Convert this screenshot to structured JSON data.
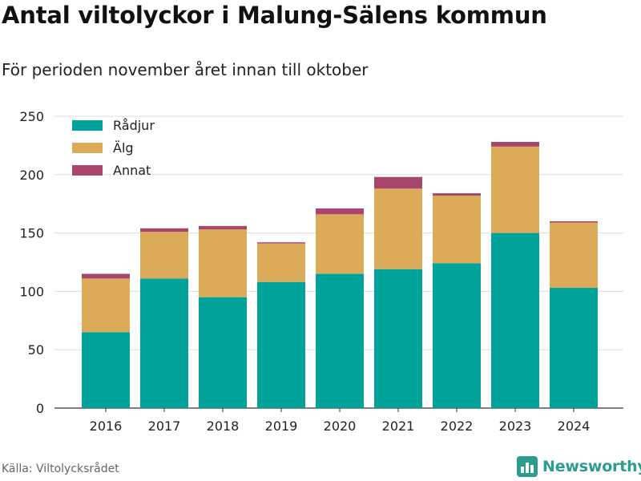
{
  "title": "Antal viltolyckor i Malung-Sälens kommun",
  "subtitle": "För perioden november året innan till oktober",
  "source": "Källa: Viltolycksrådet",
  "brand": {
    "name": "Newsworthy",
    "icon": "bar-chart-logo-icon",
    "color": "#2a9d8f"
  },
  "chart_data": {
    "type": "bar",
    "stacked": true,
    "categories": [
      "2016",
      "2017",
      "2018",
      "2019",
      "2020",
      "2021",
      "2022",
      "2023",
      "2024"
    ],
    "series": [
      {
        "name": "Rådjur",
        "color": "#00a39a",
        "values": [
          65,
          111,
          95,
          108,
          115,
          119,
          124,
          150,
          103
        ]
      },
      {
        "name": "Älg",
        "color": "#dbab5a",
        "values": [
          46,
          40,
          58,
          33,
          51,
          69,
          58,
          74,
          56
        ]
      },
      {
        "name": "Annat",
        "color": "#a8466e",
        "values": [
          4,
          3,
          3,
          1,
          5,
          10,
          2,
          4,
          1
        ]
      }
    ],
    "yticks": [
      0,
      50,
      100,
      150,
      200,
      250
    ],
    "ylim": [
      0,
      250
    ],
    "grid": true,
    "legend": "top-left"
  }
}
